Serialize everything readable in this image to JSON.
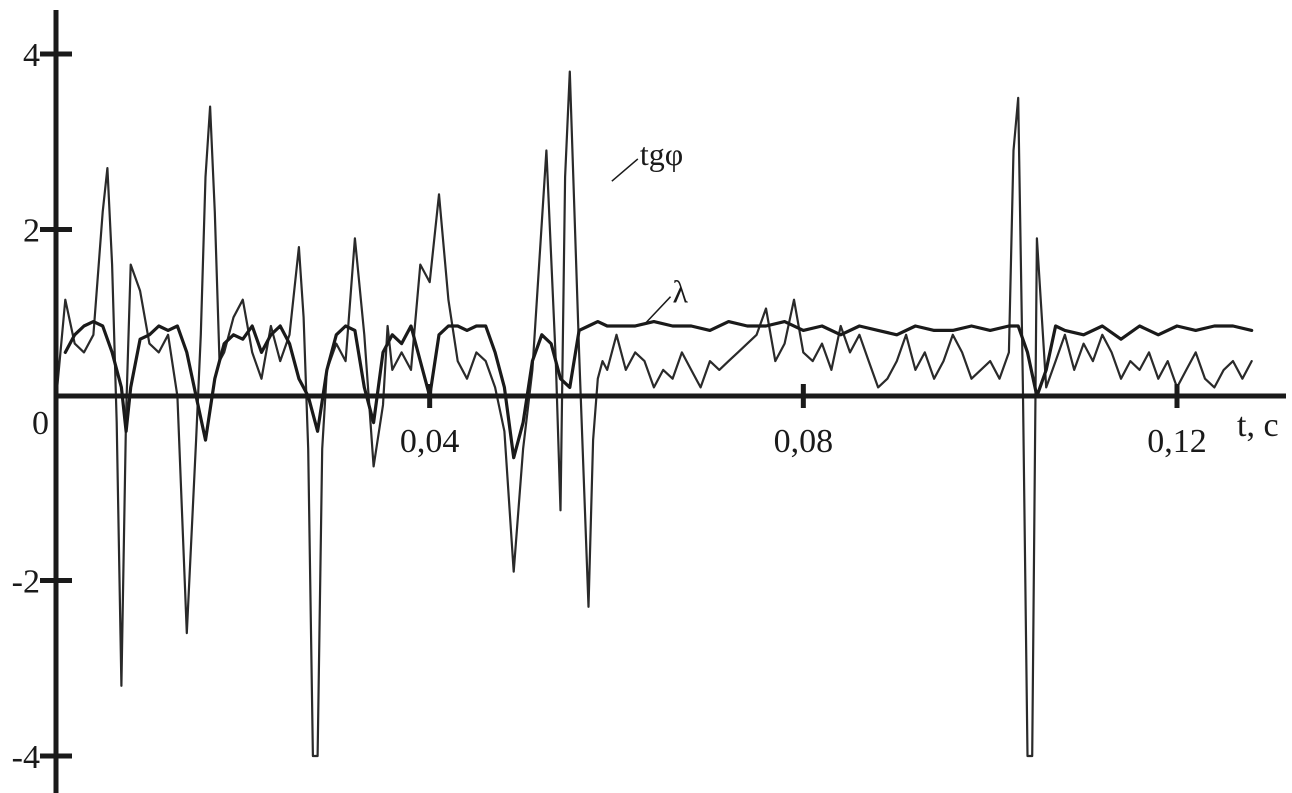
{
  "chart_data": {
    "type": "line",
    "title": "",
    "xlabel": "t, c",
    "ylabel": "",
    "xlim": [
      0,
      0.1285
    ],
    "ylim": [
      -4.15,
      4.15
    ],
    "grid": false,
    "x_ticks": [
      0.04,
      0.08,
      0.12
    ],
    "x_tick_labels": [
      "0,04",
      "0,08",
      "0,12"
    ],
    "y_ticks": [
      -4,
      -2,
      2,
      4
    ],
    "y_tick_labels": [
      "-4",
      "-2",
      "2",
      "4"
    ],
    "origin_label": "0",
    "series": [
      {
        "name": "tgφ",
        "color": "#2a2a2a",
        "x": [
          0.0,
          0.001,
          0.002,
          0.003,
          0.004,
          0.005,
          0.0055,
          0.006,
          0.0065,
          0.007,
          0.0075,
          0.008,
          0.009,
          0.01,
          0.011,
          0.012,
          0.013,
          0.014,
          0.015,
          0.0155,
          0.016,
          0.0165,
          0.017,
          0.0175,
          0.018,
          0.019,
          0.02,
          0.021,
          0.022,
          0.023,
          0.024,
          0.025,
          0.026,
          0.0265,
          0.027,
          0.0275,
          0.028,
          0.0285,
          0.029,
          0.03,
          0.031,
          0.032,
          0.033,
          0.034,
          0.035,
          0.0355,
          0.036,
          0.037,
          0.038,
          0.039,
          0.04,
          0.041,
          0.042,
          0.043,
          0.044,
          0.045,
          0.046,
          0.047,
          0.048,
          0.049,
          0.05,
          0.051,
          0.0525,
          0.0535,
          0.054,
          0.0545,
          0.055,
          0.056,
          0.057,
          0.0575,
          0.058,
          0.0585,
          0.059,
          0.06,
          0.061,
          0.062,
          0.063,
          0.064,
          0.065,
          0.066,
          0.067,
          0.068,
          0.069,
          0.07,
          0.071,
          0.072,
          0.073,
          0.074,
          0.075,
          0.076,
          0.077,
          0.078,
          0.079,
          0.08,
          0.081,
          0.082,
          0.083,
          0.084,
          0.085,
          0.086,
          0.087,
          0.088,
          0.089,
          0.09,
          0.091,
          0.092,
          0.093,
          0.094,
          0.095,
          0.096,
          0.097,
          0.098,
          0.099,
          0.1,
          0.101,
          0.102,
          0.1025,
          0.103,
          0.1035,
          0.104,
          0.1045,
          0.105,
          0.106,
          0.107,
          0.108,
          0.109,
          0.11,
          0.111,
          0.112,
          0.113,
          0.114,
          0.115,
          0.116,
          0.117,
          0.118,
          0.119,
          0.12,
          0.121,
          0.122,
          0.123,
          0.124,
          0.125,
          0.126,
          0.127,
          0.128
        ],
        "values": [
          0.05,
          1.2,
          0.7,
          0.6,
          0.8,
          2.2,
          2.7,
          1.6,
          -0.2,
          -3.2,
          -0.1,
          1.6,
          1.3,
          0.7,
          0.6,
          0.8,
          0.1,
          -2.6,
          -0.4,
          0.8,
          2.6,
          3.4,
          2.2,
          0.5,
          0.6,
          1.0,
          1.2,
          0.6,
          0.3,
          0.9,
          0.5,
          0.8,
          1.8,
          1.0,
          -0.5,
          -4.0,
          -4.0,
          -0.5,
          0.4,
          0.7,
          0.5,
          1.9,
          0.8,
          -0.7,
          0.0,
          0.9,
          0.4,
          0.6,
          0.4,
          1.6,
          1.4,
          2.4,
          1.2,
          0.5,
          0.3,
          0.6,
          0.5,
          0.2,
          -0.3,
          -1.9,
          -0.5,
          0.4,
          2.9,
          0.5,
          -1.2,
          2.6,
          3.8,
          0.6,
          -2.3,
          -0.4,
          0.3,
          0.5,
          0.4,
          0.8,
          0.4,
          0.6,
          0.5,
          0.2,
          0.4,
          0.3,
          0.6,
          0.4,
          0.2,
          0.5,
          0.4,
          0.5,
          0.6,
          0.7,
          0.8,
          1.1,
          0.5,
          0.7,
          1.2,
          0.6,
          0.5,
          0.7,
          0.4,
          0.9,
          0.6,
          0.8,
          0.5,
          0.2,
          0.3,
          0.5,
          0.8,
          0.4,
          0.6,
          0.3,
          0.5,
          0.8,
          0.6,
          0.3,
          0.4,
          0.5,
          0.3,
          0.6,
          2.9,
          3.5,
          0.2,
          -4.0,
          -4.0,
          1.9,
          0.2,
          0.5,
          0.8,
          0.4,
          0.7,
          0.5,
          0.8,
          0.6,
          0.3,
          0.5,
          0.4,
          0.6,
          0.3,
          0.5,
          0.2,
          0.4,
          0.6,
          0.3,
          0.2,
          0.4,
          0.5,
          0.3,
          0.5
        ]
      },
      {
        "name": "λ",
        "color": "#1a1a1a",
        "x": [
          0.001,
          0.002,
          0.003,
          0.004,
          0.005,
          0.006,
          0.007,
          0.0075,
          0.008,
          0.009,
          0.01,
          0.011,
          0.012,
          0.013,
          0.014,
          0.015,
          0.016,
          0.017,
          0.018,
          0.019,
          0.02,
          0.021,
          0.022,
          0.023,
          0.024,
          0.025,
          0.026,
          0.027,
          0.028,
          0.029,
          0.03,
          0.031,
          0.032,
          0.033,
          0.034,
          0.035,
          0.036,
          0.037,
          0.038,
          0.039,
          0.04,
          0.041,
          0.042,
          0.043,
          0.044,
          0.045,
          0.046,
          0.047,
          0.048,
          0.049,
          0.05,
          0.051,
          0.052,
          0.053,
          0.054,
          0.055,
          0.056,
          0.057,
          0.058,
          0.059,
          0.06,
          0.062,
          0.064,
          0.066,
          0.068,
          0.07,
          0.072,
          0.074,
          0.076,
          0.078,
          0.08,
          0.082,
          0.084,
          0.086,
          0.088,
          0.09,
          0.092,
          0.094,
          0.096,
          0.098,
          0.1,
          0.102,
          0.103,
          0.104,
          0.105,
          0.106,
          0.107,
          0.108,
          0.11,
          0.112,
          0.114,
          0.116,
          0.118,
          0.12,
          0.122,
          0.124,
          0.126,
          0.128
        ],
        "values": [
          0.6,
          0.8,
          0.9,
          0.95,
          0.9,
          0.6,
          0.2,
          -0.3,
          0.2,
          0.75,
          0.8,
          0.9,
          0.85,
          0.9,
          0.6,
          0.1,
          -0.4,
          0.3,
          0.7,
          0.8,
          0.75,
          0.9,
          0.6,
          0.8,
          0.9,
          0.7,
          0.3,
          0.1,
          -0.3,
          0.4,
          0.8,
          0.9,
          0.85,
          0.2,
          -0.2,
          0.6,
          0.8,
          0.7,
          0.9,
          0.5,
          0.1,
          0.8,
          0.9,
          0.9,
          0.85,
          0.9,
          0.9,
          0.6,
          0.2,
          -0.6,
          -0.2,
          0.5,
          0.8,
          0.7,
          0.3,
          0.2,
          0.85,
          0.9,
          0.95,
          0.9,
          0.9,
          0.9,
          0.95,
          0.9,
          0.9,
          0.85,
          0.95,
          0.9,
          0.9,
          0.95,
          0.85,
          0.9,
          0.8,
          0.9,
          0.85,
          0.8,
          0.9,
          0.85,
          0.85,
          0.9,
          0.85,
          0.9,
          0.9,
          0.6,
          0.1,
          0.4,
          0.9,
          0.85,
          0.8,
          0.9,
          0.75,
          0.9,
          0.8,
          0.9,
          0.85,
          0.9,
          0.9,
          0.85
        ]
      }
    ],
    "annotations": [
      {
        "text": "tgφ",
        "x": 0.0625,
        "y": 2.85,
        "points_to": [
          0.0595,
          2.55
        ]
      },
      {
        "text": "λ",
        "x": 0.066,
        "y": 1.28,
        "points_to": [
          0.063,
          0.92
        ]
      }
    ]
  }
}
